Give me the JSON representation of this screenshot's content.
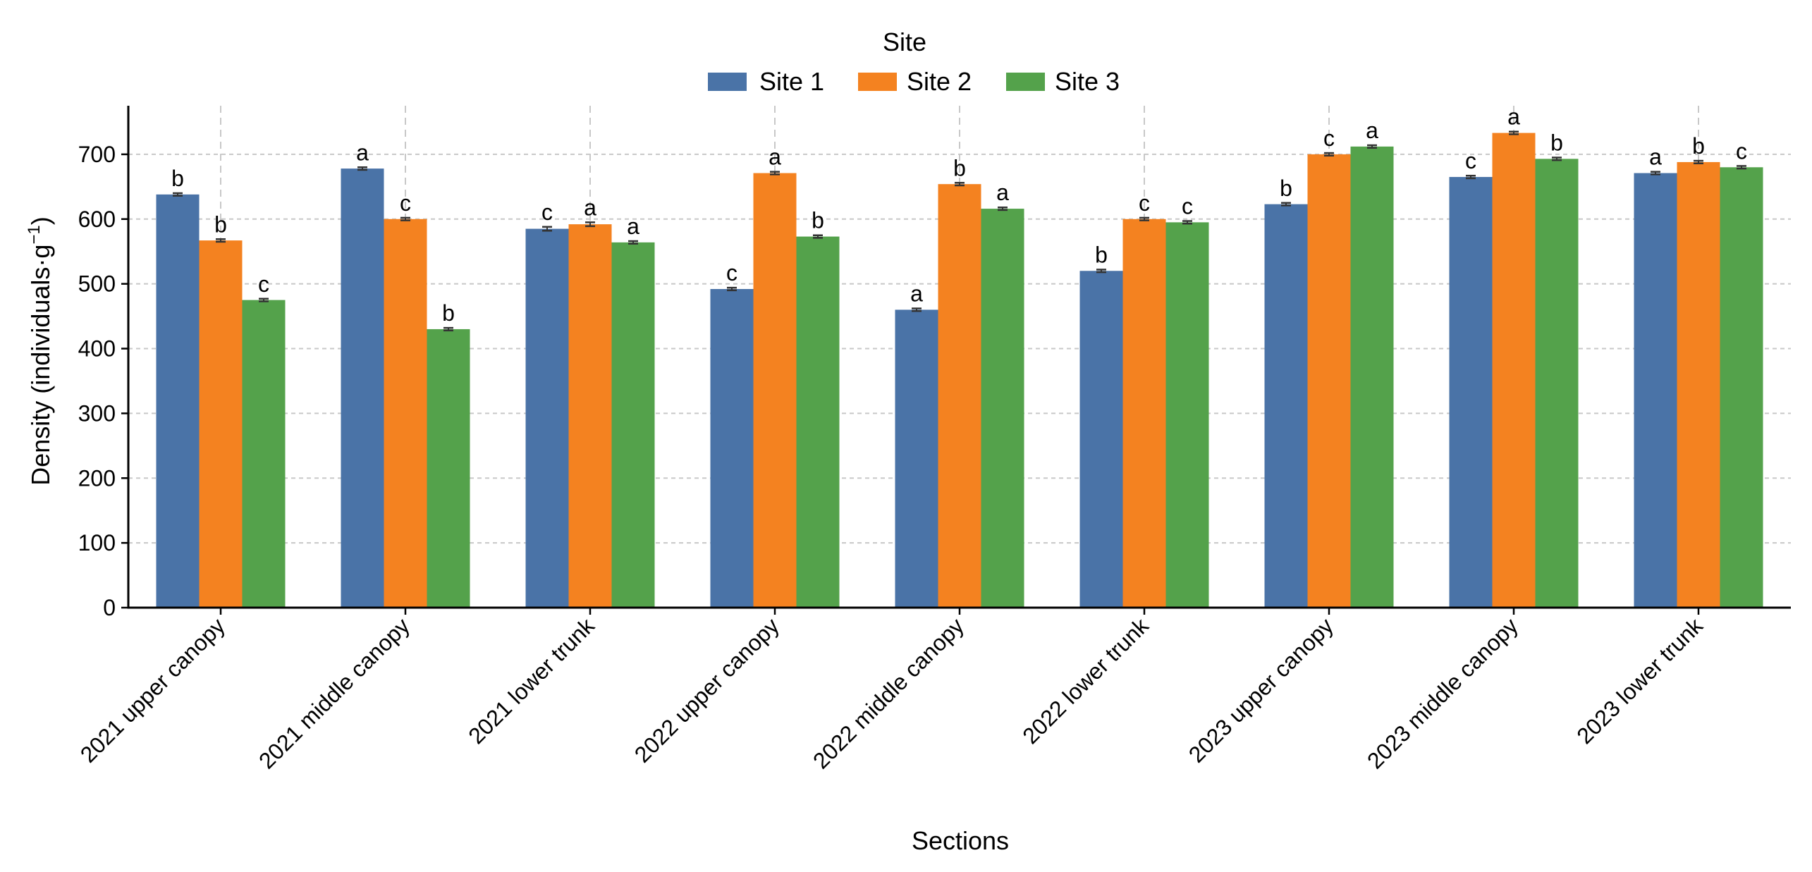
{
  "chart_data": {
    "type": "bar",
    "title": "",
    "xlabel": "Sections",
    "ylabel_main": "Density (individuals·g",
    "ylabel_sup": "−1",
    "ylabel_end": ")",
    "ylim": [
      0,
      775
    ],
    "yticks": [
      0,
      100,
      200,
      300,
      400,
      500,
      600,
      700
    ],
    "legend": {
      "title": "Site",
      "placement": "top-center"
    },
    "categories": [
      "2021 upper canopy",
      "2021 middle canopy",
      "2021 lower trunk",
      "2022 upper canopy",
      "2022 middle canopy",
      "2022 lower trunk",
      "2023 upper canopy",
      "2023 middle canopy",
      "2023 lower trunk"
    ],
    "series": [
      {
        "name": "Site 1",
        "color": "#4a73a7",
        "values": [
          638,
          678,
          585,
          492,
          460,
          520,
          623,
          665,
          671
        ],
        "errors": [
          2,
          2,
          3,
          2,
          2,
          2,
          2,
          2,
          2
        ],
        "letters": [
          "b",
          "a",
          "c",
          "c",
          "a",
          "b",
          "b",
          "c",
          "a"
        ]
      },
      {
        "name": "Site 2",
        "color": "#f48220",
        "values": [
          567,
          600,
          592,
          671,
          654,
          600,
          700,
          733,
          688
        ],
        "errors": [
          2,
          2,
          3,
          2,
          2,
          2,
          2,
          2,
          2
        ],
        "letters": [
          "b",
          "c",
          "a",
          "a",
          "b",
          "c",
          "c",
          "a",
          "b"
        ]
      },
      {
        "name": "Site 3",
        "color": "#54a24b",
        "values": [
          475,
          430,
          564,
          573,
          616,
          595,
          712,
          693,
          680
        ],
        "errors": [
          2,
          2,
          2,
          2,
          2,
          2,
          2,
          2,
          2
        ],
        "letters": [
          "c",
          "b",
          "a",
          "b",
          "a",
          "c",
          "a",
          "b",
          "c"
        ]
      }
    ]
  }
}
